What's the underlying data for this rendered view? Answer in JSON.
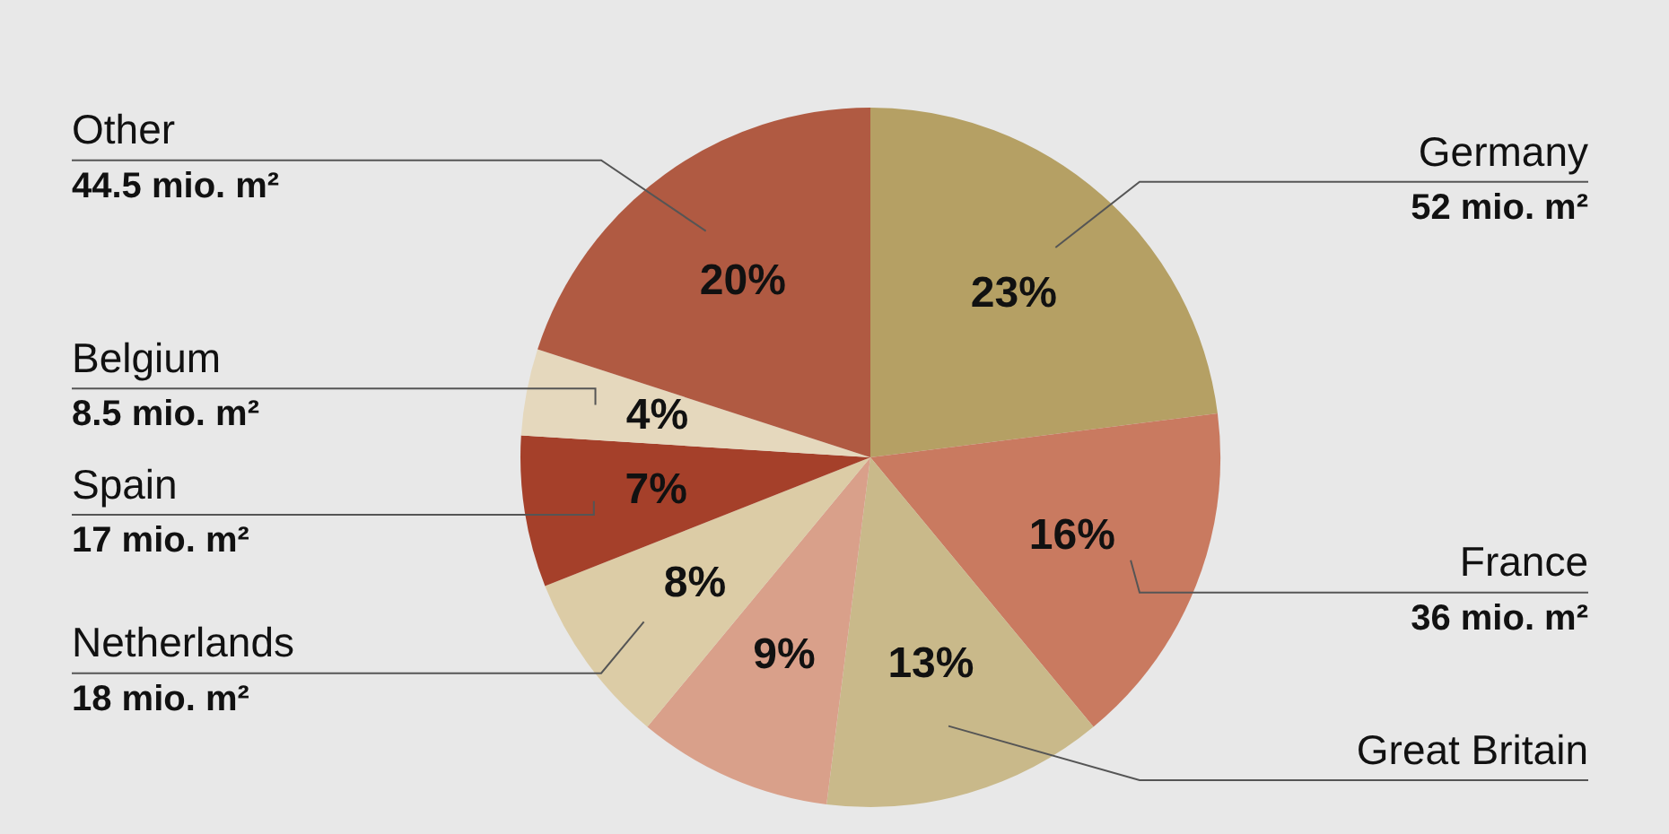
{
  "chart_data": {
    "type": "pie",
    "categories": [
      "Germany",
      "France",
      "Great Britain",
      null,
      "Netherlands",
      "Spain",
      "Belgium",
      "Other"
    ],
    "values": [
      23,
      16,
      13,
      9,
      8,
      7,
      4,
      20
    ],
    "value_labels": [
      "23%",
      "16%",
      "13%",
      "9%",
      "8%",
      "7%",
      "4%",
      "20%"
    ],
    "colors": [
      "#b5a064",
      "#c97a60",
      "#c9b98a",
      "#d9a08a",
      "#dccca6",
      "#a5402a",
      "#e5d8bd",
      "#b05a42"
    ],
    "annotations": [
      {
        "text": "52 mio. m²",
        "x": "Germany"
      },
      {
        "text": "36 mio. m²",
        "x": "France"
      },
      {
        "text": "18 mio. m²",
        "x": "Netherlands"
      },
      {
        "text": "17 mio. m²",
        "x": "Spain"
      },
      {
        "text": "8.5 mio. m²",
        "x": "Belgium"
      },
      {
        "text": "44.5 mio. m²",
        "x": "Other"
      }
    ],
    "legend": false
  }
}
